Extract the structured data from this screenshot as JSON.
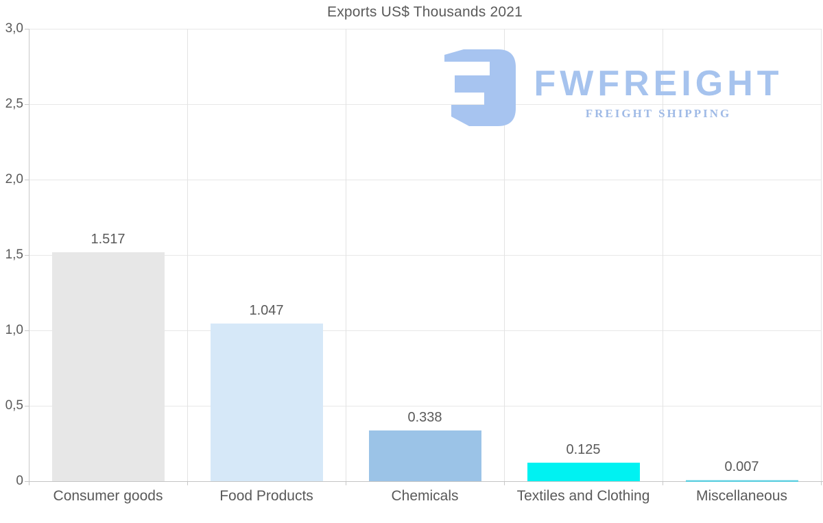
{
  "chart_data": {
    "type": "bar",
    "title": "Exports US$ Thousands 2021",
    "categories": [
      "Consumer goods",
      "Food Products",
      "Chemicals",
      "Textiles and Clothing",
      "Miscellaneous"
    ],
    "values": [
      1.517,
      1.047,
      0.338,
      0.125,
      0.007
    ],
    "value_labels": [
      "1.517",
      "1.047",
      "0.338",
      "0.125",
      "0.007"
    ],
    "bar_colors": [
      "#e7e7e7",
      "#d6e8f8",
      "#9bc3e7",
      "#00f2f2",
      "#5ecfe0"
    ],
    "xlabel": "",
    "ylabel": "",
    "ylim": [
      0,
      3
    ],
    "y_ticks": [
      {
        "value": 0,
        "label": "0"
      },
      {
        "value": 0.5,
        "label": "0,5"
      },
      {
        "value": 1,
        "label": "1,0"
      },
      {
        "value": 1.5,
        "label": "1,5"
      },
      {
        "value": 2,
        "label": "2,0"
      },
      {
        "value": 2.5,
        "label": "2,5"
      },
      {
        "value": 3,
        "label": "3,0"
      }
    ],
    "grid": "horizontal and vertical, light gray",
    "legend": "none"
  },
  "logo": {
    "brand": "FWFREIGHT",
    "tagline": "FREIGHT SHIPPING",
    "mark_color": "#a7c4f0",
    "brand_color": "#a6c3ee",
    "tagline_color": "#9fbae6"
  },
  "colors": {
    "text": "#595959",
    "grid": "#e7e7e7",
    "axis": "#c8c8c8",
    "background": "#ffffff"
  }
}
